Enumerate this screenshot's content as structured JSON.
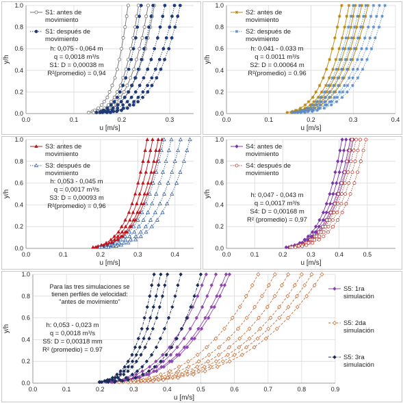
{
  "chart_data": [
    {
      "id": "S1",
      "type": "line",
      "xlabel": "u [m/s]",
      "ylabel": "y/h",
      "xlim": [
        0,
        0.35
      ],
      "xticks": [
        "0.0",
        "0.1",
        "0.2",
        "0.3"
      ],
      "xtick_values": [
        0,
        0.1,
        0.2,
        0.3
      ],
      "ylim": [
        0,
        1
      ],
      "yticks": [
        "0.0",
        "0.2",
        "0.4",
        "0.6",
        "0.8",
        "1.0"
      ],
      "grid": true,
      "legend_position": "top-right",
      "legend": [
        "S1: antes de movimiento",
        "S1: después de movimiento"
      ],
      "annotation": [
        "h: 0,075 - 0,064 m",
        "q = 0,0018 m³/s",
        "S1: D = 0,00038 m",
        "R²(promedio) = 0,94"
      ],
      "groups": [
        {
          "name": "S1: antes de movimiento",
          "color": "#707070",
          "marker": "open-circle",
          "dash": "solid",
          "u_surface": [
            0.213,
            0.235,
            0.255,
            0.268
          ],
          "u_bed": 0.09,
          "shape": 0.22
        },
        {
          "name": "S1: después de movimiento",
          "color": "#1f3a78",
          "marker": "filled-circle",
          "dash": "dotted",
          "u_surface": [
            0.24,
            0.265,
            0.29,
            0.31,
            0.322
          ],
          "u_bed": 0.09,
          "shape": 0.22
        }
      ]
    },
    {
      "id": "S2",
      "type": "line",
      "xlabel": "u [m/s]",
      "ylabel": "y/h",
      "xlim": [
        0,
        0.4
      ],
      "xticks": [
        "0.0",
        "0.1",
        "0.2",
        "0.3",
        "0.4"
      ],
      "xtick_values": [
        0,
        0.1,
        0.2,
        0.3,
        0.4
      ],
      "ylim": [
        0,
        1
      ],
      "yticks": [
        "0.0",
        "0.2",
        "0.4",
        "0.6",
        "0.8",
        "1.0"
      ],
      "grid": true,
      "legend_position": "top-right",
      "legend": [
        "S2: antes de movimiento",
        "S2: después de movimiento"
      ],
      "annotation": [
        "h: 0.041 - 0.033 m",
        "q = 0.0011 m³/s",
        "S2: D = 0.00064 m",
        "R²(promedio) = 0.96"
      ],
      "groups": [
        {
          "name": "S2: antes de movimiento",
          "color": "#b8860b",
          "marker": "star",
          "dash": "solid",
          "u_surface": [
            0.272,
            0.29,
            0.305,
            0.32,
            0.335
          ],
          "u_bed": 0.075,
          "shape": 0.22
        },
        {
          "name": "S2: después de movimiento",
          "color": "#5b8cc8",
          "marker": "star",
          "dash": "dotted",
          "u_surface": [
            0.3,
            0.315,
            0.33,
            0.348,
            0.362,
            0.375
          ],
          "u_bed": 0.075,
          "shape": 0.22
        }
      ]
    },
    {
      "id": "S3",
      "type": "line",
      "xlabel": "u [m/s]",
      "ylabel": "y/h",
      "xlim": [
        0,
        0.45
      ],
      "xticks": [
        "0.0",
        "0.1",
        "0.2",
        "0.3",
        "0.4"
      ],
      "xtick_values": [
        0,
        0.1,
        0.2,
        0.3,
        0.4
      ],
      "ylim": [
        0,
        1
      ],
      "yticks": [
        "0.0",
        "0.2",
        "0.4",
        "0.6",
        "0.8",
        "1.0"
      ],
      "grid": true,
      "legend_position": "top-right",
      "legend": [
        "S3: antes de movimiento",
        "S3: después de movimiento"
      ],
      "annotation": [
        "h: 0,053 - 0,045 m",
        "q = 0,0017 m³/s",
        "S3: D = 0,00093 m",
        "R²(promedio) = 0,96"
      ],
      "groups": [
        {
          "name": "S3: antes de movimiento",
          "color": "#c0141b",
          "marker": "filled-triangle",
          "dash": "solid",
          "u_surface": [
            0.325,
            0.34,
            0.355,
            0.365
          ],
          "u_bed": 0.095,
          "shape": 0.22
        },
        {
          "name": "S3: después de movimiento",
          "color": "#2e5ea8",
          "marker": "open-triangle",
          "dash": "dotted",
          "u_surface": [
            0.37,
            0.39,
            0.415,
            0.44
          ],
          "u_bed": 0.1,
          "shape": 0.22
        }
      ]
    },
    {
      "id": "S4",
      "type": "line",
      "xlabel": "u [m/s]",
      "ylabel": "y/h",
      "xlim": [
        0,
        0.6
      ],
      "xticks": [
        "0.0",
        "0.1",
        "0.2",
        "0.3",
        "0.4",
        "0.5"
      ],
      "xtick_values": [
        0,
        0.1,
        0.2,
        0.3,
        0.4,
        0.5
      ],
      "ylim": [
        0,
        1
      ],
      "yticks": [
        "0.0",
        "0.2",
        "0.4",
        "0.6",
        "0.8",
        "1.0"
      ],
      "grid": true,
      "legend_position": "top-right",
      "legend": [
        "S4: antes de movimiento",
        "S4: después de movimiento"
      ],
      "annotation": [
        "h: 0,047 - 0,043 m",
        "q = 0,0017 m³/s",
        "S4: D = 0,00168 m",
        "R² (promedio) = 0,97"
      ],
      "groups": [
        {
          "name": "S4: antes de movimiento",
          "color": "#7b35a8",
          "marker": "filled-diamond",
          "dash": "solid",
          "u_surface": [
            0.41,
            0.425,
            0.44,
            0.45
          ],
          "u_bed": 0.1,
          "shape": 0.22
        },
        {
          "name": "S4: después de movimiento",
          "color": "#c0392b",
          "marker": "open-circle",
          "dash": "dotted",
          "u_surface": [
            0.445,
            0.46,
            0.475,
            0.495
          ],
          "u_bed": 0.1,
          "shape": 0.22
        }
      ]
    },
    {
      "id": "S5",
      "type": "line",
      "xlabel": "u [m/s]",
      "ylabel": "y/h",
      "xlim": [
        0,
        0.9
      ],
      "xticks": [
        "0.0",
        "0.1",
        "0.2",
        "0.3",
        "0.4",
        "0.5",
        "0.6",
        "0.7",
        "0.8",
        "0.9"
      ],
      "xtick_values": [
        0,
        0.1,
        0.2,
        0.3,
        0.4,
        0.5,
        0.6,
        0.7,
        0.8,
        0.9
      ],
      "ylim": [
        0,
        1
      ],
      "yticks": [
        "0.0",
        "0.2",
        "0.4",
        "0.6",
        "0.8",
        "1.0"
      ],
      "grid": true,
      "legend_position": "right",
      "legend": [
        "S5: 1ra simulación",
        "S5: 2da simulación",
        "S5: 3ra simulación"
      ],
      "note": [
        "Para las tres simulaciones se",
        "tienen perfiles de velocidad:",
        "\"antes de movimiento\""
      ],
      "annotation": [
        "h: 0,053 - 0,023 m",
        "q = 0,0018 m³/s",
        "S5: D = 0,00318 mm",
        "R² (promedio) = 0.97"
      ],
      "groups": [
        {
          "name": "S5: 1ra simulación",
          "color": "#8e44ad",
          "marker": "filled-diamond",
          "dash": "solid",
          "u_surface": [
            0.515,
            0.545,
            0.575,
            0.585
          ],
          "u_bed": 0.11,
          "shape": 0.28
        },
        {
          "name": "S5: 2da simulación",
          "color": "#c8703a",
          "marker": "open-diamond",
          "dash": "dashed",
          "u_surface": [
            0.67,
            0.72,
            0.76,
            0.8,
            0.83,
            0.86
          ],
          "u_bed": 0.1,
          "shape": 0.28
        },
        {
          "name": "S5: 3ra simulación",
          "color": "#1c2c5a",
          "marker": "filled-diamond",
          "dash": "dashdot",
          "u_surface": [
            0.36,
            0.38,
            0.4,
            0.44,
            0.5
          ],
          "u_bed": 0.1,
          "shape": 0.22
        }
      ]
    }
  ]
}
